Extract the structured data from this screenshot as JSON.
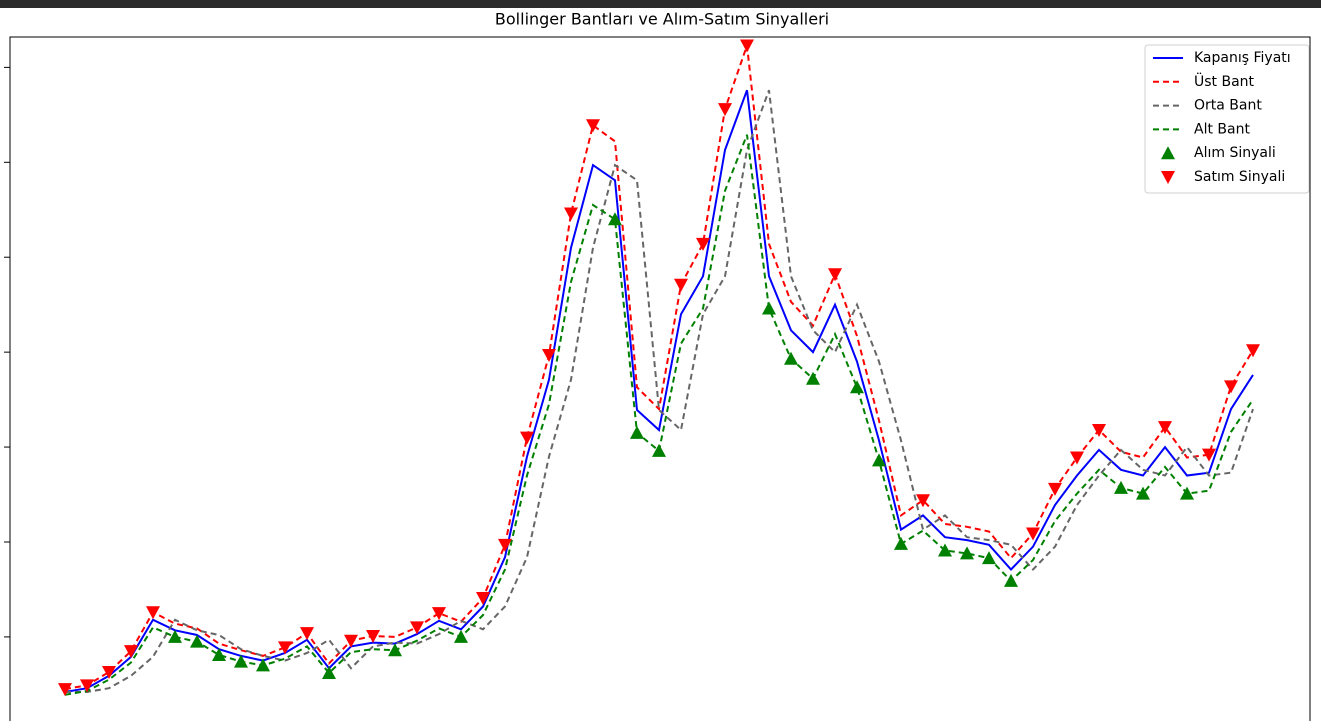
{
  "chart_data": {
    "type": "line",
    "title": "Bollinger Bantları ve Alım-Satım Sinyalleri",
    "ylim": [
      2300,
      73200
    ],
    "yticks": [
      10000,
      20000,
      30000,
      40000,
      50000,
      60000,
      70000
    ],
    "legend": "upper right",
    "series": [
      {
        "name": "Kapanış Fiyatı",
        "color": "#0000ff",
        "linestyle": "solid",
        "values": [
          4200,
          4600,
          5900,
          7900,
          11800,
          10700,
          10200,
          8700,
          8000,
          7500,
          8300,
          9700,
          6700,
          9000,
          9400,
          9300,
          10300,
          11700,
          10800,
          13200,
          18400,
          29000,
          37100,
          51000,
          59700,
          58100,
          33900,
          31800,
          44000,
          48000,
          61300,
          67600,
          48000,
          42300,
          40000,
          45000,
          39000,
          30700,
          21300,
          22800,
          20500,
          20200,
          19700,
          17100,
          19500,
          23900,
          27000,
          29700,
          27600,
          27000,
          30000,
          27000,
          27300,
          34000,
          37600
        ]
      },
      {
        "name": "Üst Bant",
        "color": "#ff0000",
        "linestyle": "dashed",
        "values": [
          4500,
          4900,
          6300,
          8500,
          12600,
          11400,
          10900,
          9300,
          8600,
          8000,
          8900,
          10400,
          7200,
          9600,
          10100,
          10000,
          11000,
          12500,
          11600,
          14100,
          19700,
          31000,
          39700,
          54600,
          63900,
          62200,
          36300,
          34000,
          47100,
          51400,
          65600,
          72300,
          51400,
          45300,
          42800,
          48200,
          41700,
          32800,
          22800,
          24400,
          21900,
          21600,
          21100,
          18300,
          20900,
          25600,
          28900,
          31800,
          29500,
          28900,
          32100,
          28900,
          29200,
          36400,
          40200
        ]
      },
      {
        "name": "Orta Bant",
        "color": "#666666",
        "linestyle": "dashed",
        "values": [
          4200,
          4200,
          4600,
          5900,
          7900,
          11800,
          10700,
          10200,
          8700,
          8000,
          7500,
          8300,
          9700,
          6700,
          9000,
          9400,
          9300,
          10300,
          11700,
          10800,
          13200,
          18400,
          29000,
          37100,
          51000,
          59700,
          58100,
          33900,
          31800,
          44000,
          48000,
          61300,
          67600,
          48000,
          42300,
          40000,
          45000,
          39000,
          30700,
          21300,
          22800,
          20500,
          20200,
          19700,
          17100,
          19500,
          23900,
          27000,
          29700,
          27600,
          27000,
          30000,
          27000,
          27300,
          34000
        ]
      },
      {
        "name": "Alt Bant",
        "color": "#008000",
        "linestyle": "dashed",
        "values": [
          3900,
          4300,
          5500,
          7300,
          11000,
          10000,
          9500,
          8100,
          7400,
          7000,
          7700,
          9000,
          6200,
          8400,
          8700,
          8600,
          9600,
          10900,
          10000,
          12300,
          17100,
          27000,
          34500,
          47400,
          55500,
          54000,
          31500,
          29600,
          40900,
          44600,
          57000,
          62900,
          44600,
          39300,
          37200,
          41900,
          36300,
          28600,
          19800,
          21200,
          19100,
          18800,
          18300,
          15900,
          18100,
          22200,
          25100,
          27600,
          25700,
          25100,
          27900,
          25100,
          25400,
          31600,
          35000
        ]
      },
      {
        "name": "Alım Sinyali",
        "color": "#008000",
        "marker": "triangle-up",
        "values": [
          null,
          null,
          null,
          null,
          null,
          10000,
          9500,
          8100,
          7400,
          7000,
          null,
          null,
          6200,
          null,
          null,
          8600,
          null,
          null,
          10000,
          null,
          null,
          null,
          null,
          null,
          null,
          54000,
          31500,
          29600,
          null,
          null,
          null,
          null,
          44600,
          39300,
          37200,
          null,
          36300,
          28600,
          19800,
          null,
          19100,
          18800,
          18300,
          15900,
          null,
          null,
          null,
          null,
          25700,
          25100,
          null,
          25100,
          null,
          null,
          null
        ]
      },
      {
        "name": "Satım Sinyali",
        "color": "#ff0000",
        "marker": "triangle-down",
        "values": [
          4500,
          4900,
          6300,
          8500,
          12600,
          null,
          null,
          null,
          null,
          null,
          8900,
          10400,
          null,
          9600,
          10100,
          null,
          11000,
          12500,
          null,
          14100,
          19700,
          31000,
          39700,
          54600,
          63900,
          null,
          null,
          null,
          47100,
          51400,
          65600,
          72300,
          null,
          null,
          null,
          48200,
          null,
          null,
          null,
          24400,
          null,
          null,
          null,
          null,
          20900,
          25600,
          28900,
          31800,
          null,
          null,
          32100,
          null,
          29200,
          36400,
          40200
        ]
      }
    ]
  }
}
